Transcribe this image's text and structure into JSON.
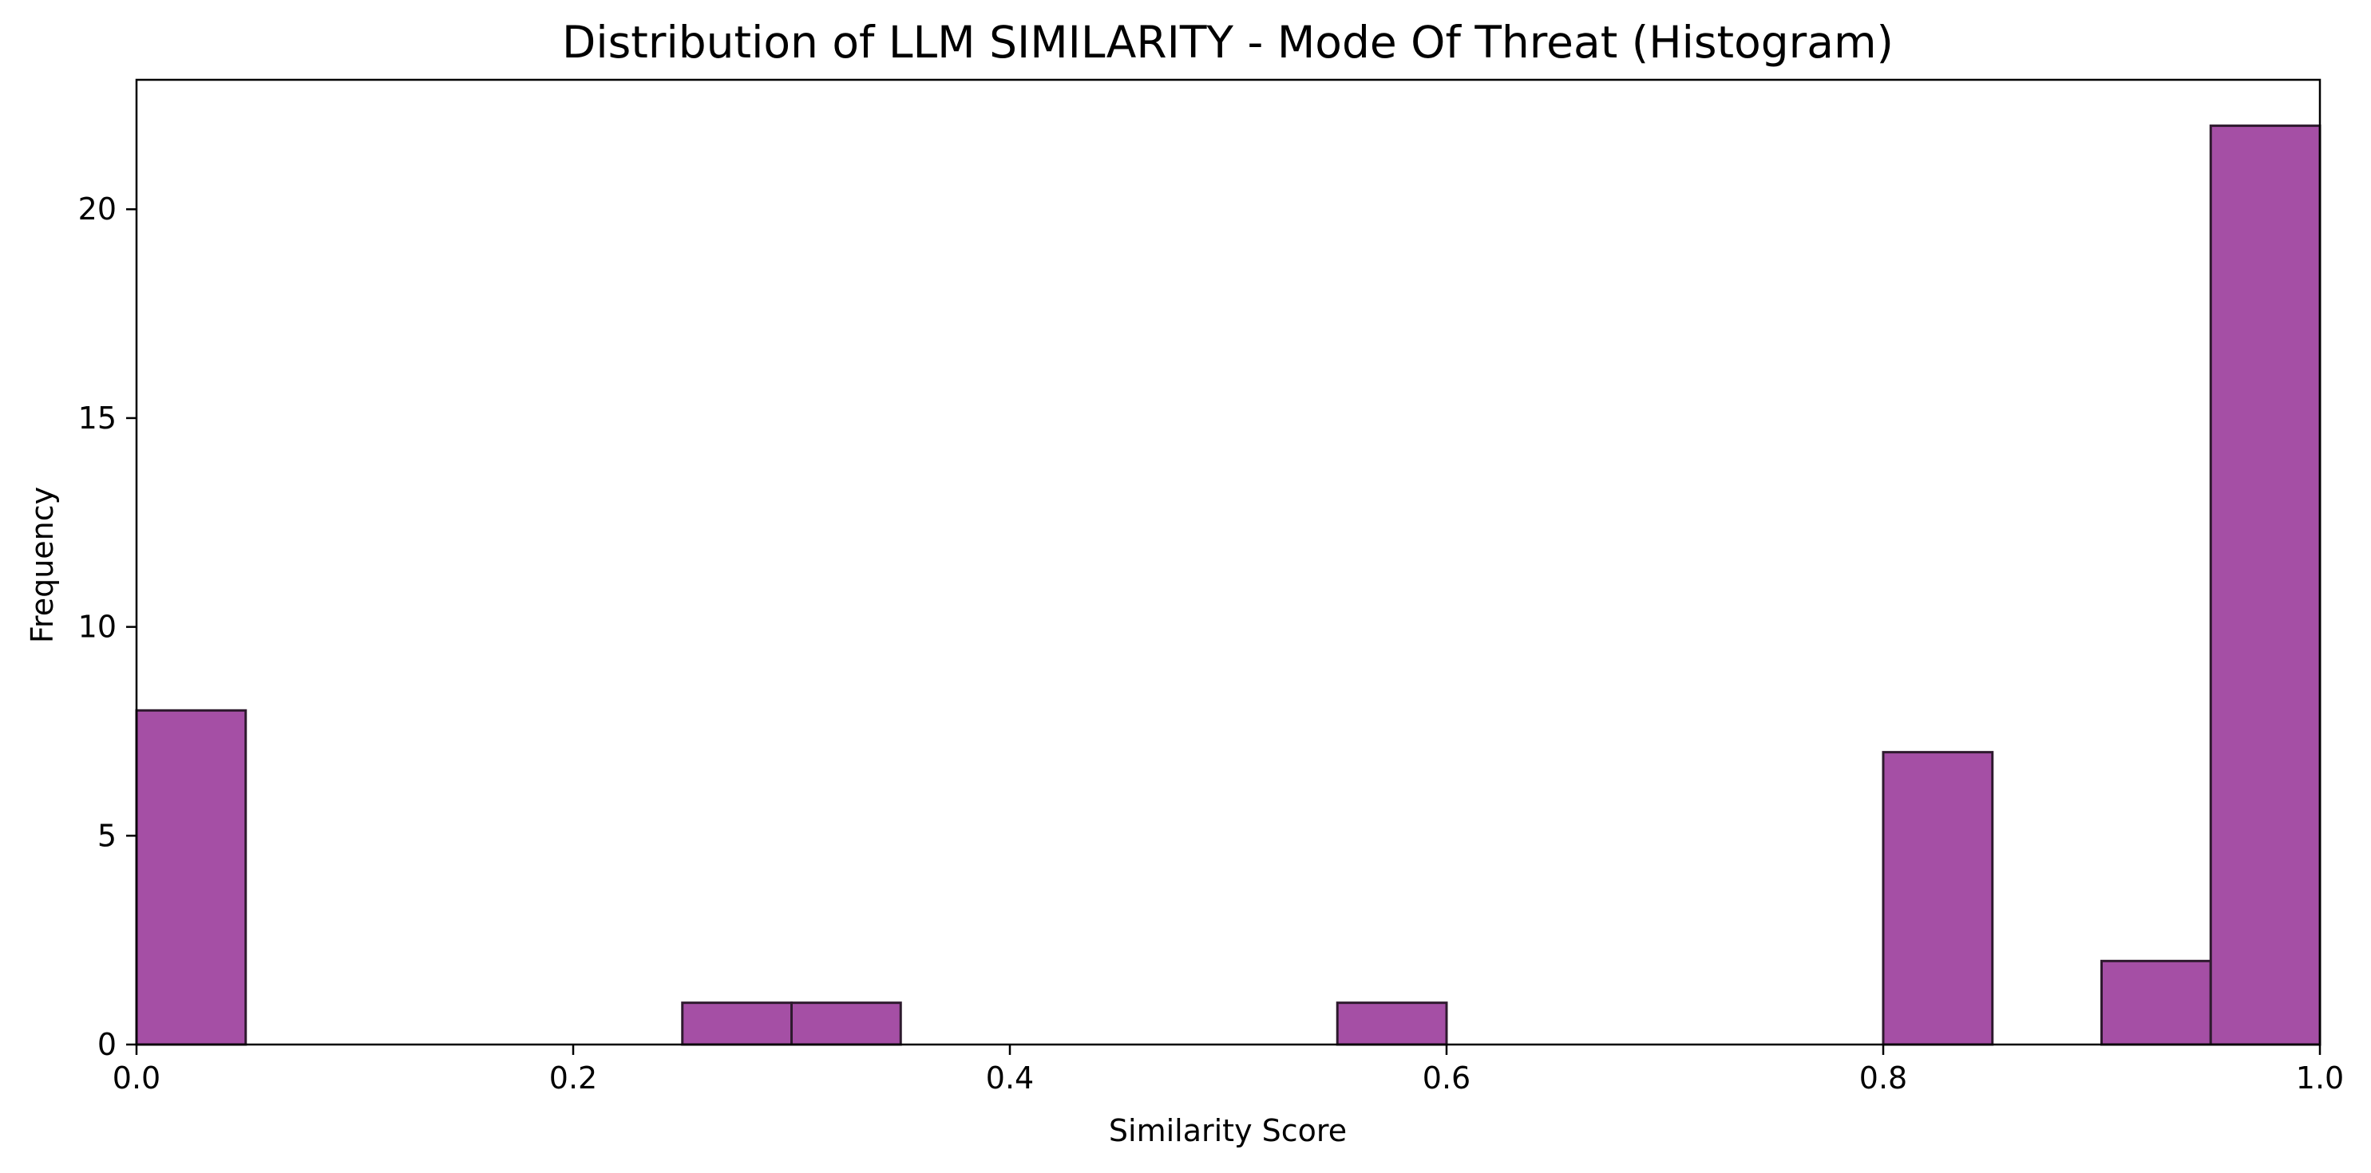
{
  "chart_data": {
    "type": "bar",
    "title": "Distribution of LLM SIMILARITY - Mode Of Threat (Histogram)",
    "xlabel": "Similarity Score",
    "ylabel": "Frequency",
    "xlim": [
      0.0,
      1.0
    ],
    "ylim": [
      0,
      23.1
    ],
    "x_ticks": [
      0.0,
      0.2,
      0.4,
      0.6,
      0.8,
      1.0
    ],
    "x_tick_labels": [
      "0.0",
      "0.2",
      "0.4",
      "0.6",
      "0.8",
      "1.0"
    ],
    "y_ticks": [
      0,
      5,
      10,
      15,
      20
    ],
    "y_tick_labels": [
      "0",
      "5",
      "10",
      "15",
      "20"
    ],
    "bin_width": 0.05,
    "bin_edges": [
      0.0,
      0.05,
      0.1,
      0.15,
      0.2,
      0.25,
      0.3,
      0.35,
      0.4,
      0.45,
      0.5,
      0.55,
      0.6,
      0.65,
      0.7,
      0.75,
      0.8,
      0.85,
      0.9,
      0.95,
      1.0
    ],
    "counts": [
      8,
      0,
      0,
      0,
      0,
      1,
      1,
      0,
      0,
      0,
      0,
      1,
      0,
      0,
      0,
      0,
      7,
      0,
      2,
      22
    ],
    "grid": false,
    "legend": "none",
    "colors": {
      "bar_fill": "#a54fa5",
      "bar_edge": "#2e1a2e",
      "axis": "#000000"
    }
  }
}
